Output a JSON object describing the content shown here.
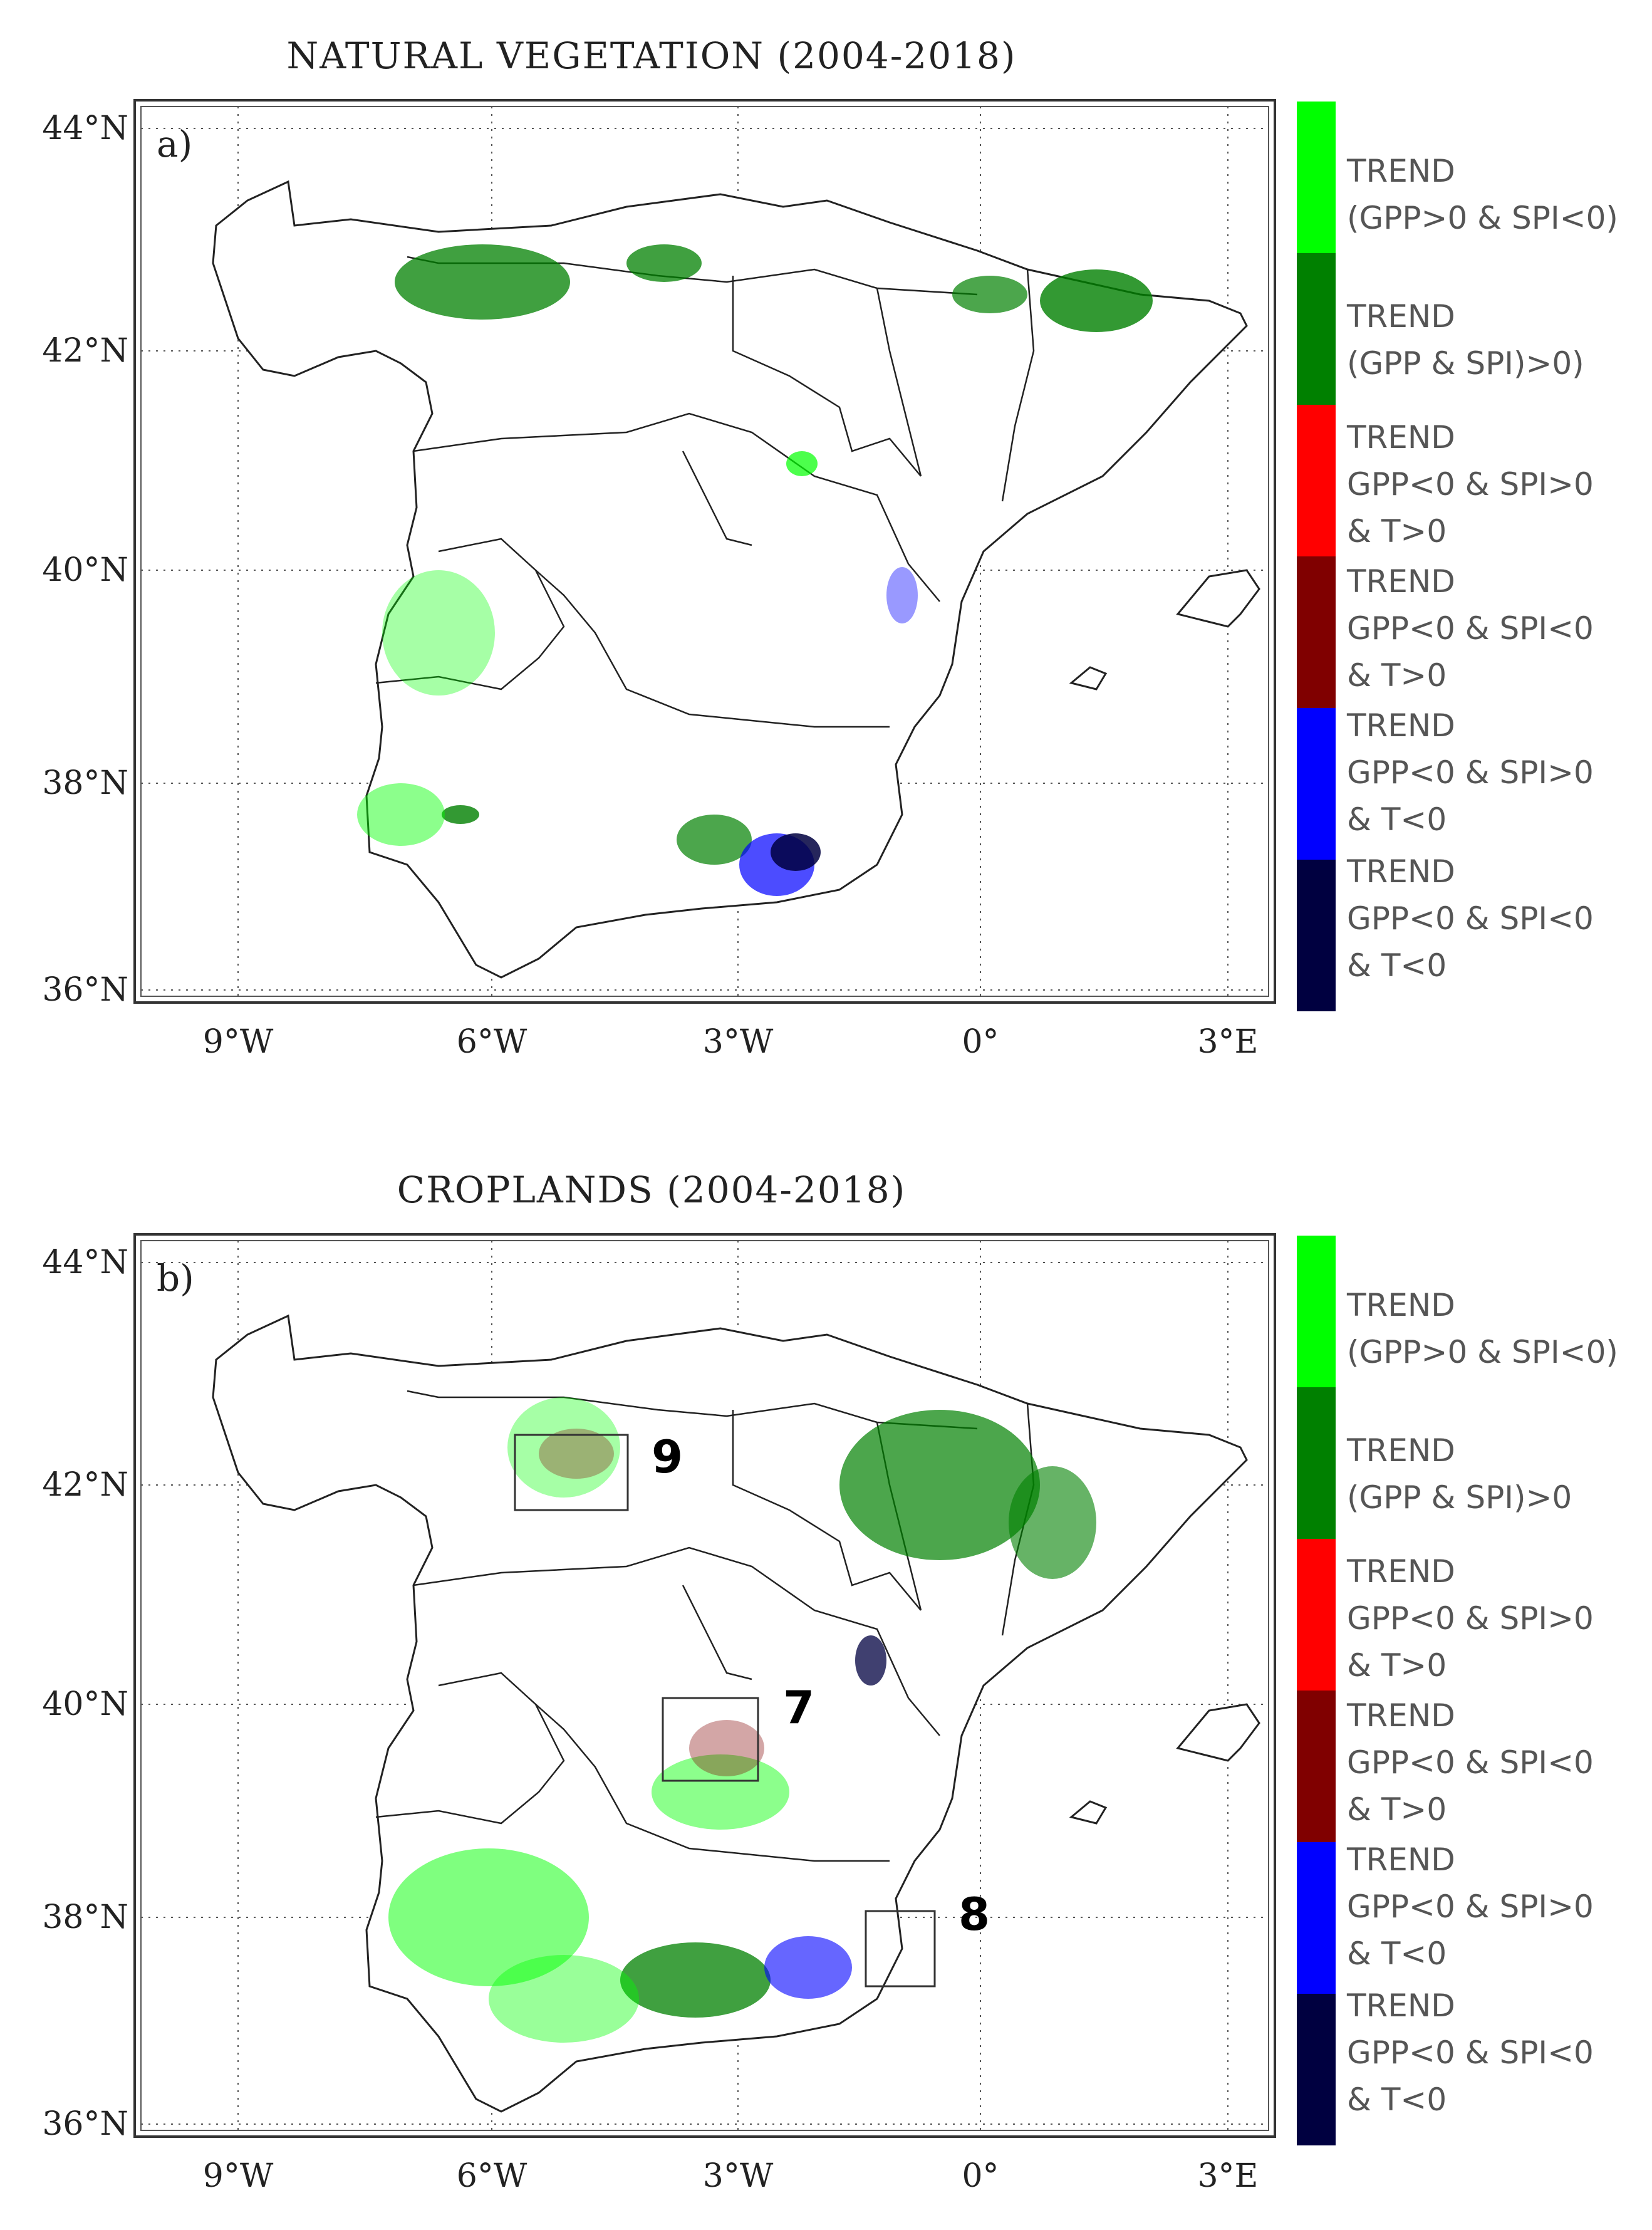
{
  "panels": [
    {
      "title": "NATURAL VEGETATION (2004-2018)",
      "label": "a)",
      "lat_ticks": [
        "44°N",
        "42°N",
        "40°N",
        "38°N",
        "36°N"
      ],
      "lon_ticks": [
        "9°W",
        "6°W",
        "3°W",
        "0°",
        "3°E"
      ],
      "legend": [
        {
          "lines": [
            "TREND",
            "(GPP>0 & SPI<0)"
          ],
          "color": "#00ff00"
        },
        {
          "lines": [
            "TREND",
            "(GPP & SPI)>0)"
          ],
          "color": "#008000"
        },
        {
          "lines": [
            "TREND",
            "GPP<0 & SPI>0",
            "& T>0"
          ],
          "color": "#ff0000"
        },
        {
          "lines": [
            "TREND",
            "GPP<0 & SPI<0",
            "& T>0"
          ],
          "color": "#800000"
        },
        {
          "lines": [
            "TREND",
            "GPP<0 & SPI>0",
            "& T<0"
          ],
          "color": "#0000ff"
        },
        {
          "lines": [
            "TREND",
            "GPP<0 & SPI<0",
            "& T<0"
          ],
          "color": "#000040"
        }
      ]
    },
    {
      "title": "CROPLANDS (2004-2018)",
      "label": "b)",
      "lat_ticks": [
        "44°N",
        "42°N",
        "40°N",
        "38°N",
        "36°N"
      ],
      "lon_ticks": [
        "9°W",
        "6°W",
        "3°W",
        "0°",
        "3°E"
      ],
      "boxes": [
        "9",
        "7",
        "8"
      ],
      "legend": [
        {
          "lines": [
            "TREND",
            "(GPP>0 & SPI<0)"
          ],
          "color": "#00ff00"
        },
        {
          "lines": [
            "TREND",
            "(GPP & SPI)>0"
          ],
          "color": "#008000"
        },
        {
          "lines": [
            "TREND",
            "GPP<0 & SPI>0",
            "& T>0"
          ],
          "color": "#ff0000"
        },
        {
          "lines": [
            "TREND",
            "GPP<0 & SPI<0",
            "& T>0"
          ],
          "color": "#800000"
        },
        {
          "lines": [
            "TREND",
            "GPP<0 & SPI>0",
            "& T<0"
          ],
          "color": "#0000ff"
        },
        {
          "lines": [
            "TREND",
            "GPP<0 & SPI<0",
            "& T<0"
          ],
          "color": "#000040"
        }
      ]
    }
  ]
}
